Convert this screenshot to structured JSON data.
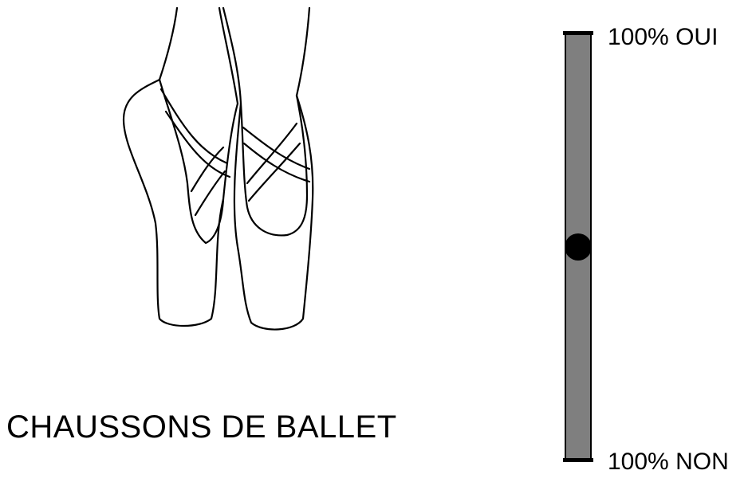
{
  "caption": "CHAUSSONS DE BALLET",
  "illustration": {
    "icon": "ballet-shoes-icon"
  },
  "scale": {
    "top_label": "100% OUI",
    "bottom_label": "100% NON",
    "marker_level": 0.5,
    "bar_color": "#7f7f7f",
    "marker_color": "#000000"
  }
}
